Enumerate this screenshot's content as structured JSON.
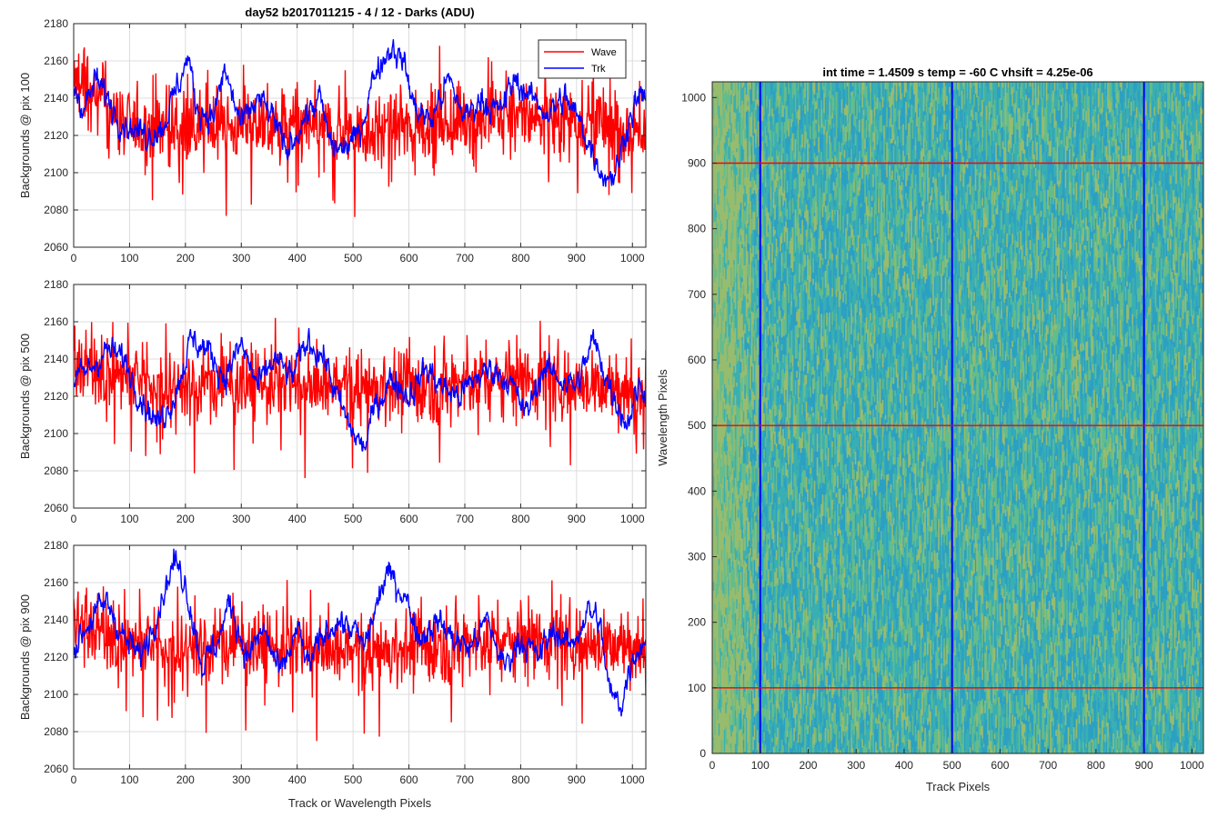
{
  "chart_data": [
    {
      "type": "line",
      "title": "day52 b2017011215 - 4 / 12 - Darks (ADU)",
      "ylabel": "Backgrounds @ pix 100",
      "xlabel": "",
      "xlim": [
        0,
        1024
      ],
      "ylim": [
        2060,
        2180
      ],
      "xticks": [
        0,
        100,
        200,
        300,
        400,
        500,
        600,
        700,
        800,
        900,
        1000
      ],
      "yticks": [
        2060,
        2080,
        2100,
        2120,
        2140,
        2160,
        2180
      ],
      "grid": true,
      "legend": {
        "position": "top-right",
        "entries": [
          "Wave",
          "Trk"
        ]
      },
      "series": [
        {
          "name": "Wave",
          "color": "#ff0000",
          "style": "noise",
          "mean": 2128,
          "spread": 13,
          "key_points": {
            "x": [
              0,
              100,
              200,
              300,
              400,
              500,
              600,
              700,
              800,
              900,
              1000,
              1024
            ],
            "y": [
              2150,
              2125,
              2125,
              2125,
              2125,
              2122,
              2125,
              2128,
              2130,
              2130,
              2122,
              2120
            ]
          }
        },
        {
          "name": "Trk",
          "color": "#0000ff",
          "style": "smooth",
          "key_points": {
            "x": [
              0,
              20,
              40,
              60,
              80,
              100,
              130,
              160,
              190,
              205,
              220,
              250,
              270,
              300,
              330,
              360,
              380,
              410,
              440,
              460,
              480,
              510,
              540,
              570,
              590,
              610,
              640,
              670,
              700,
              730,
              760,
              790,
              820,
              850,
              880,
              910,
              930,
              950,
              970,
              990,
              1010,
              1024
            ],
            "y": [
              2145,
              2135,
              2150,
              2140,
              2130,
              2125,
              2120,
              2125,
              2150,
              2162,
              2135,
              2130,
              2155,
              2125,
              2140,
              2128,
              2110,
              2128,
              2140,
              2115,
              2112,
              2120,
              2155,
              2168,
              2160,
              2135,
              2128,
              2150,
              2130,
              2140,
              2132,
              2150,
              2140,
              2132,
              2140,
              2125,
              2110,
              2098,
              2100,
              2125,
              2140,
              2140
            ]
          }
        }
      ]
    },
    {
      "type": "line",
      "title": "",
      "ylabel": "Backgrounds @ pix 500",
      "xlabel": "",
      "xlim": [
        0,
        1024
      ],
      "ylim": [
        2060,
        2180
      ],
      "xticks": [
        0,
        100,
        200,
        300,
        400,
        500,
        600,
        700,
        800,
        900,
        1000
      ],
      "yticks": [
        2060,
        2080,
        2100,
        2120,
        2140,
        2160,
        2180
      ],
      "grid": true,
      "series": [
        {
          "name": "Wave",
          "color": "#ff0000",
          "style": "noise",
          "mean": 2128,
          "spread": 13,
          "key_points": {
            "x": [
              0,
              100,
              200,
              300,
              400,
              500,
              600,
              700,
              800,
              900,
              1000,
              1024
            ],
            "y": [
              2138,
              2130,
              2125,
              2128,
              2125,
              2125,
              2125,
              2128,
              2130,
              2128,
              2122,
              2125
            ]
          }
        },
        {
          "name": "Trk",
          "color": "#0000ff",
          "style": "smooth",
          "key_points": {
            "x": [
              0,
              30,
              60,
              90,
              120,
              150,
              180,
              210,
              240,
              270,
              300,
              330,
              360,
              390,
              420,
              450,
              470,
              500,
              520,
              540,
              570,
              600,
              630,
              660,
              690,
              720,
              750,
              780,
              810,
              840,
              870,
              900,
              930,
              960,
              990,
              1010,
              1024
            ],
            "y": [
              2128,
              2135,
              2145,
              2140,
              2120,
              2105,
              2120,
              2150,
              2145,
              2130,
              2148,
              2125,
              2140,
              2130,
              2150,
              2140,
              2120,
              2100,
              2092,
              2115,
              2130,
              2120,
              2135,
              2125,
              2120,
              2130,
              2135,
              2128,
              2110,
              2135,
              2130,
              2125,
              2150,
              2125,
              2105,
              2125,
              2125
            ]
          }
        }
      ]
    },
    {
      "type": "line",
      "title": "",
      "ylabel": "Backgrounds @ pix 900",
      "xlabel": "Track or Wavelength Pixels",
      "xlim": [
        0,
        1024
      ],
      "ylim": [
        2060,
        2180
      ],
      "xticks": [
        0,
        100,
        200,
        300,
        400,
        500,
        600,
        700,
        800,
        900,
        1000
      ],
      "yticks": [
        2060,
        2080,
        2100,
        2120,
        2140,
        2160,
        2180
      ],
      "grid": true,
      "series": [
        {
          "name": "Wave",
          "color": "#ff0000",
          "style": "noise",
          "mean": 2128,
          "spread": 13,
          "key_points": {
            "x": [
              0,
              100,
              200,
              300,
              400,
              500,
              600,
              700,
              800,
              900,
              1000,
              1024
            ],
            "y": [
              2140,
              2128,
              2125,
              2128,
              2125,
              2122,
              2125,
              2128,
              2130,
              2130,
              2125,
              2122
            ]
          }
        },
        {
          "name": "Trk",
          "color": "#0000ff",
          "style": "smooth",
          "key_points": {
            "x": [
              0,
              30,
              60,
              90,
              120,
              150,
              180,
              200,
              230,
              260,
              280,
              310,
              340,
              370,
              400,
              420,
              440,
              470,
              500,
              520,
              560,
              590,
              620,
              650,
              680,
              710,
              740,
              770,
              800,
              830,
              860,
              890,
              920,
              940,
              960,
              980,
              1000,
              1024
            ],
            "y": [
              2125,
              2140,
              2150,
              2130,
              2120,
              2145,
              2172,
              2160,
              2115,
              2130,
              2150,
              2120,
              2135,
              2110,
              2135,
              2115,
              2128,
              2140,
              2135,
              2125,
              2165,
              2155,
              2130,
              2140,
              2130,
              2125,
              2140,
              2115,
              2130,
              2120,
              2135,
              2125,
              2145,
              2140,
              2100,
              2095,
              2120,
              2130
            ]
          }
        }
      ]
    },
    {
      "type": "heatmap",
      "title": "int time = 1.4509 s   temp = -60 C   vhsift = 4.25e-06",
      "xlabel": "Track Pixels",
      "ylabel": "Wavelength Pixels",
      "xlim": [
        0,
        1024
      ],
      "ylim": [
        0,
        1024
      ],
      "xticks": [
        0,
        100,
        200,
        300,
        400,
        500,
        600,
        700,
        800,
        900,
        1000
      ],
      "yticks": [
        0,
        100,
        200,
        300,
        400,
        500,
        600,
        700,
        800,
        900,
        1000
      ],
      "colormap": "parula",
      "base_colors": [
        "#2a9fc4",
        "#3bb0b0",
        "#6cbf84",
        "#a8c060"
      ],
      "vertical_markers": {
        "x": [
          100,
          500,
          900
        ],
        "color": "#0000ff"
      },
      "horizontal_markers": {
        "y": [
          100,
          500,
          900
        ],
        "color": "#ff0000"
      }
    }
  ]
}
